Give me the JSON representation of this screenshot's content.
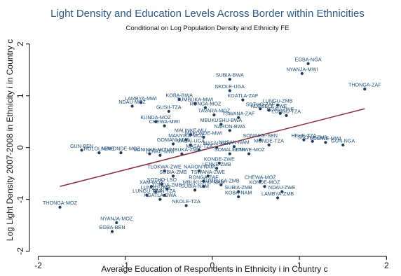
{
  "chart_data": {
    "type": "scatter",
    "title": "Light Density and Education Levels Across Border within Ethnicities",
    "subtitle": "Conditional on Log Population Density and Ethnicity FE",
    "xlabel": "Average Education of Respondents in Ethnicity i in Country c",
    "ylabel": "Log Light Density 2007-2008 in Ethnicity i in Country c",
    "xlim": [
      -2.1,
      2.15
    ],
    "ylim": [
      -2.1,
      2.2
    ],
    "xticks": [
      -2,
      -1,
      0,
      1,
      2
    ],
    "yticks": [
      -2,
      -1,
      0,
      1,
      2
    ],
    "grid": false,
    "colors": {
      "points": "#1f3b5c",
      "labels": "#1f4e79",
      "fit": "#8b2e3c",
      "title": "#2c5a8a"
    },
    "fit_line": {
      "x": [
        -1.75,
        1.75
      ],
      "y": [
        -0.75,
        0.75
      ]
    },
    "points": [
      {
        "x": 1.1,
        "y": 1.62,
        "label": "EGBA-NGA"
      },
      {
        "x": 1.03,
        "y": 1.43,
        "label": "NYANJA-MWI"
      },
      {
        "x": 1.75,
        "y": 1.13,
        "label": "THONGA-ZAF"
      },
      {
        "x": 0.2,
        "y": 1.32,
        "label": "SUBIA-BWA"
      },
      {
        "x": 0.2,
        "y": 1.1,
        "label": "NKOLE-UGA"
      },
      {
        "x": 0.35,
        "y": 0.92,
        "label": "KGATLA-ZAF"
      },
      {
        "x": 0.75,
        "y": 0.82,
        "label": "LUNGU-ZMB"
      },
      {
        "x": 0.65,
        "y": 0.72,
        "label": "NDEBELE-ZWE"
      },
      {
        "x": 0.78,
        "y": 0.66,
        "label": "NDAU-ZWE"
      },
      {
        "x": 0.85,
        "y": 0.62,
        "label": "LUNGU-TZA"
      },
      {
        "x": 0.55,
        "y": 0.75,
        "label": "SOTHO-ZAF"
      },
      {
        "x": 0.3,
        "y": 0.58,
        "label": "TSWANA-ZAF"
      },
      {
        "x": -0.38,
        "y": 0.93,
        "label": "KOBA-BWA"
      },
      {
        "x": -0.2,
        "y": 0.85,
        "label": "TUMBUKA-MWI"
      },
      {
        "x": -0.08,
        "y": 0.77,
        "label": "RONGA-MOZ"
      },
      {
        "x": 0.02,
        "y": 0.63,
        "label": "TAVARA-MOZ"
      },
      {
        "x": -0.82,
        "y": 0.87,
        "label": "LAMBYA-MWI"
      },
      {
        "x": -0.92,
        "y": 0.8,
        "label": "NDAU-MOZ"
      },
      {
        "x": -0.5,
        "y": 0.7,
        "label": "GUSII-TZA"
      },
      {
        "x": 0.1,
        "y": 0.45,
        "label": "MBUKUSHU-BWA"
      },
      {
        "x": 0.2,
        "y": 0.33,
        "label": "NARON-BWA"
      },
      {
        "x": -0.65,
        "y": 0.5,
        "label": "KUNDA-MOZ"
      },
      {
        "x": -0.55,
        "y": 0.42,
        "label": "CHEWA-MWI"
      },
      {
        "x": -0.25,
        "y": 0.25,
        "label": "MALINKE-MLI"
      },
      {
        "x": -0.3,
        "y": 0.15,
        "label": "MANYIKA-MOZ"
      },
      {
        "x": -0.1,
        "y": 0.2,
        "label": "MAKONDE-MWI"
      },
      {
        "x": -0.25,
        "y": 0.05,
        "label": "MASAI-UGA"
      },
      {
        "x": -0.45,
        "y": 0.07,
        "label": "GOMANI-MWI"
      },
      {
        "x": -0.15,
        "y": -0.05,
        "label": "MASAI-TZA"
      },
      {
        "x": 0.05,
        "y": 0.0,
        "label": "MASAI-KEN"
      },
      {
        "x": -0.35,
        "y": -0.12,
        "label": "TUMBUKA-ZMB"
      },
      {
        "x": 0.25,
        "y": 0.02,
        "label": "NUSAN-NAM"
      },
      {
        "x": 0.55,
        "y": 0.15,
        "label": "SONINKE-SEN"
      },
      {
        "x": 0.65,
        "y": 0.05,
        "label": "MONDE-TZA"
      },
      {
        "x": 0.42,
        "y": -0.12,
        "label": "LOMWE-MOZ"
      },
      {
        "x": 0.2,
        "y": -0.12,
        "label": "SOMALI-ETH"
      },
      {
        "x": 0.08,
        "y": -0.3,
        "label": "KONDE-ZWE"
      },
      {
        "x": 0.05,
        "y": -0.4,
        "label": "LENKE-ZMB"
      },
      {
        "x": -0.15,
        "y": -0.45,
        "label": "NARON-NAM"
      },
      {
        "x": -0.05,
        "y": -0.55,
        "label": "TSWANA-ZWE"
      },
      {
        "x": -0.1,
        "y": -0.75,
        "label": "MBUKUSHU-NAM"
      },
      {
        "x": -0.2,
        "y": -0.82,
        "label": "SUBIA-NAM"
      },
      {
        "x": 1.05,
        "y": 0.15,
        "label": "HEHE-TZA"
      },
      {
        "x": 1.3,
        "y": 0.1,
        "label": "LOMWE-MWI"
      },
      {
        "x": 1.5,
        "y": 0.05,
        "label": "GUN-NGA"
      },
      {
        "x": 1.15,
        "y": 0.12,
        "label": "SHONA-ZMB"
      },
      {
        "x": -1.5,
        "y": -0.05,
        "label": "GUN-BEN"
      },
      {
        "x": -1.3,
        "y": -0.1,
        "label": "HOLOLI-ENE"
      },
      {
        "x": -1.05,
        "y": -0.1,
        "label": "MAKONDE-MOZ"
      },
      {
        "x": -0.72,
        "y": -0.12,
        "label": "SONINKE-MLI"
      },
      {
        "x": -0.6,
        "y": -0.15,
        "label": "LENKE-MWI"
      },
      {
        "x": -0.55,
        "y": -0.45,
        "label": "TLOKWA-ZWE"
      },
      {
        "x": -0.45,
        "y": -0.55,
        "label": "SUBIA-ZMB"
      },
      {
        "x": -0.58,
        "y": -0.7,
        "label": "SOTHO-LSO"
      },
      {
        "x": -0.7,
        "y": -0.75,
        "label": "XAM-MOZ"
      },
      {
        "x": -0.52,
        "y": -0.8,
        "label": "LUNDA-ZMB"
      },
      {
        "x": -0.65,
        "y": -0.85,
        "label": "LUNGU-ZMB"
      },
      {
        "x": -0.75,
        "y": -0.92,
        "label": "LUNGU-TZA"
      },
      {
        "x": -0.55,
        "y": -0.92,
        "label": "GUN-TZA"
      },
      {
        "x": -0.6,
        "y": -1.0,
        "label": "KGATLA-BWA"
      },
      {
        "x": -0.3,
        "y": -1.12,
        "label": "NKOLE-TZA"
      },
      {
        "x": 0.3,
        "y": -0.85,
        "label": "SUBIA-ZMB"
      },
      {
        "x": 0.55,
        "y": -0.65,
        "label": "CHEWA-MOZ"
      },
      {
        "x": 0.6,
        "y": -0.75,
        "label": "KONDE-MOZ"
      },
      {
        "x": 0.3,
        "y": -0.95,
        "label": "KOBA-NAM"
      },
      {
        "x": 0.8,
        "y": -0.85,
        "label": "NDAU-ZWE"
      },
      {
        "x": 0.75,
        "y": -0.97,
        "label": "LAMBYA-ZMB"
      },
      {
        "x": -0.1,
        "y": -0.65,
        "label": "RONGA-ZAF"
      },
      {
        "x": 0.1,
        "y": -0.72,
        "label": "TUMBUKA-ZMB"
      },
      {
        "x": -1.75,
        "y": -1.15,
        "label": "THONGA-MOZ"
      },
      {
        "x": -1.1,
        "y": -1.45,
        "label": "NYANJA-MOZ"
      },
      {
        "x": -1.15,
        "y": -1.62,
        "label": "EGBA-BEN"
      }
    ]
  }
}
